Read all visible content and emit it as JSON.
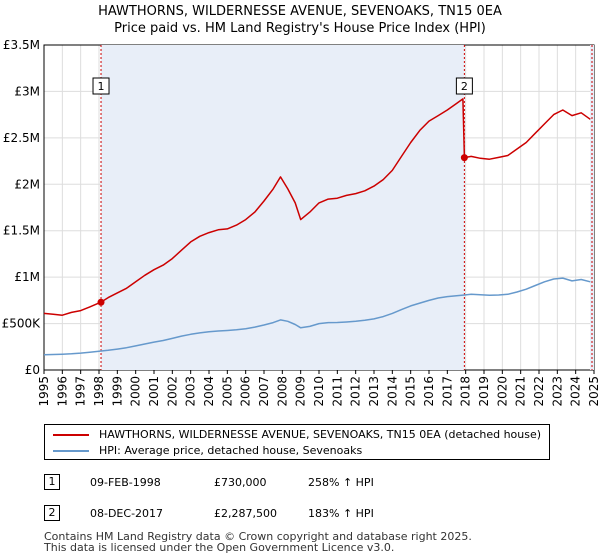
{
  "chart_data": {
    "type": "line",
    "title": "HAWTHORNS, WILDERNESSE AVENUE, SEVENOAKS, TN15 0EA",
    "subtitle": "Price paid vs. HM Land Registry's House Price Index (HPI)",
    "xlim": [
      1995,
      2025
    ],
    "ylim": [
      0,
      3500000
    ],
    "yticks": [
      {
        "value": 0,
        "label": "£0"
      },
      {
        "value": 500000,
        "label": "£500K"
      },
      {
        "value": 1000000,
        "label": "£1M"
      },
      {
        "value": 1500000,
        "label": "£1.5M"
      },
      {
        "value": 2000000,
        "label": "£2M"
      },
      {
        "value": 2500000,
        "label": "£2.5M"
      },
      {
        "value": 3000000,
        "label": "£3M"
      },
      {
        "value": 3500000,
        "label": "£3.5M"
      }
    ],
    "xticks": [
      "1995",
      "1996",
      "1997",
      "1998",
      "1999",
      "2000",
      "2001",
      "2002",
      "2003",
      "2004",
      "2005",
      "2006",
      "2007",
      "2008",
      "2009",
      "2010",
      "2011",
      "2012",
      "2013",
      "2014",
      "2015",
      "2016",
      "2017",
      "2018",
      "2019",
      "2020",
      "2021",
      "2022",
      "2023",
      "2024",
      "2025"
    ],
    "series": [
      {
        "name": "HAWTHORNS, WILDERNESSE AVENUE, SEVENOAKS, TN15 0EA (detached house)",
        "color": "#cc0000",
        "points": [
          [
            1995.0,
            610000
          ],
          [
            1995.5,
            600000
          ],
          [
            1996.0,
            590000
          ],
          [
            1996.5,
            620000
          ],
          [
            1997.0,
            640000
          ],
          [
            1997.5,
            680000
          ],
          [
            1998.1,
            730000
          ],
          [
            1998.5,
            780000
          ],
          [
            1999.0,
            830000
          ],
          [
            1999.5,
            880000
          ],
          [
            2000.0,
            950000
          ],
          [
            2000.5,
            1020000
          ],
          [
            2001.0,
            1080000
          ],
          [
            2001.5,
            1130000
          ],
          [
            2002.0,
            1200000
          ],
          [
            2002.5,
            1290000
          ],
          [
            2003.0,
            1380000
          ],
          [
            2003.5,
            1440000
          ],
          [
            2004.0,
            1480000
          ],
          [
            2004.5,
            1510000
          ],
          [
            2005.0,
            1520000
          ],
          [
            2005.5,
            1560000
          ],
          [
            2006.0,
            1620000
          ],
          [
            2006.5,
            1700000
          ],
          [
            2007.0,
            1820000
          ],
          [
            2007.5,
            1950000
          ],
          [
            2007.9,
            2080000
          ],
          [
            2008.3,
            1950000
          ],
          [
            2008.7,
            1800000
          ],
          [
            2009.0,
            1620000
          ],
          [
            2009.5,
            1700000
          ],
          [
            2010.0,
            1800000
          ],
          [
            2010.5,
            1840000
          ],
          [
            2011.0,
            1850000
          ],
          [
            2011.5,
            1880000
          ],
          [
            2012.0,
            1900000
          ],
          [
            2012.5,
            1930000
          ],
          [
            2013.0,
            1980000
          ],
          [
            2013.5,
            2050000
          ],
          [
            2014.0,
            2150000
          ],
          [
            2014.5,
            2300000
          ],
          [
            2015.0,
            2450000
          ],
          [
            2015.5,
            2580000
          ],
          [
            2016.0,
            2680000
          ],
          [
            2016.5,
            2740000
          ],
          [
            2017.0,
            2800000
          ],
          [
            2017.5,
            2870000
          ],
          [
            2017.85,
            2920000
          ],
          [
            2017.93,
            2287500
          ],
          [
            2018.3,
            2300000
          ],
          [
            2018.8,
            2280000
          ],
          [
            2019.3,
            2270000
          ],
          [
            2019.8,
            2290000
          ],
          [
            2020.3,
            2310000
          ],
          [
            2020.8,
            2380000
          ],
          [
            2021.3,
            2450000
          ],
          [
            2021.8,
            2550000
          ],
          [
            2022.3,
            2650000
          ],
          [
            2022.8,
            2750000
          ],
          [
            2023.3,
            2800000
          ],
          [
            2023.8,
            2740000
          ],
          [
            2024.3,
            2770000
          ],
          [
            2024.8,
            2700000
          ]
        ]
      },
      {
        "name": "HPI: Average price, detached house, Sevenoaks",
        "color": "#6699cc",
        "points": [
          [
            1995.0,
            165000
          ],
          [
            1995.5,
            167000
          ],
          [
            1996.0,
            170000
          ],
          [
            1996.5,
            175000
          ],
          [
            1997.0,
            182000
          ],
          [
            1997.5,
            192000
          ],
          [
            1998.0,
            202000
          ],
          [
            1998.5,
            212000
          ],
          [
            1999.0,
            225000
          ],
          [
            1999.5,
            240000
          ],
          [
            2000.0,
            260000
          ],
          [
            2000.5,
            280000
          ],
          [
            2001.0,
            300000
          ],
          [
            2001.5,
            318000
          ],
          [
            2002.0,
            340000
          ],
          [
            2002.5,
            365000
          ],
          [
            2003.0,
            385000
          ],
          [
            2003.5,
            400000
          ],
          [
            2004.0,
            412000
          ],
          [
            2004.5,
            420000
          ],
          [
            2005.0,
            425000
          ],
          [
            2005.5,
            433000
          ],
          [
            2006.0,
            445000
          ],
          [
            2006.5,
            462000
          ],
          [
            2007.0,
            485000
          ],
          [
            2007.5,
            510000
          ],
          [
            2007.9,
            540000
          ],
          [
            2008.3,
            525000
          ],
          [
            2008.7,
            490000
          ],
          [
            2009.0,
            455000
          ],
          [
            2009.5,
            470000
          ],
          [
            2010.0,
            500000
          ],
          [
            2010.5,
            510000
          ],
          [
            2011.0,
            512000
          ],
          [
            2011.5,
            517000
          ],
          [
            2012.0,
            525000
          ],
          [
            2012.5,
            535000
          ],
          [
            2013.0,
            550000
          ],
          [
            2013.5,
            575000
          ],
          [
            2014.0,
            610000
          ],
          [
            2014.5,
            650000
          ],
          [
            2015.0,
            690000
          ],
          [
            2015.5,
            720000
          ],
          [
            2016.0,
            750000
          ],
          [
            2016.5,
            775000
          ],
          [
            2017.0,
            790000
          ],
          [
            2017.5,
            800000
          ],
          [
            2017.93,
            808000
          ],
          [
            2018.3,
            815000
          ],
          [
            2018.8,
            810000
          ],
          [
            2019.3,
            805000
          ],
          [
            2019.8,
            808000
          ],
          [
            2020.3,
            815000
          ],
          [
            2020.8,
            840000
          ],
          [
            2021.3,
            870000
          ],
          [
            2021.8,
            910000
          ],
          [
            2022.3,
            950000
          ],
          [
            2022.8,
            980000
          ],
          [
            2023.3,
            990000
          ],
          [
            2023.8,
            960000
          ],
          [
            2024.3,
            975000
          ],
          [
            2024.8,
            950000
          ]
        ]
      }
    ],
    "sales": [
      {
        "n": "1",
        "x": 1998.11,
        "value": 730000
      },
      {
        "n": "2",
        "x": 2017.93,
        "value": 2287500
      }
    ]
  },
  "legend": {
    "property": "HAWTHORNS, WILDERNESSE AVENUE, SEVENOAKS, TN15 0EA (detached house)",
    "hpi": "HPI: Average price, detached house, Sevenoaks"
  },
  "sales_table": [
    {
      "n": "1",
      "date": "09-FEB-1998",
      "price": "£730,000",
      "hpi": "258% ↑ HPI"
    },
    {
      "n": "2",
      "date": "08-DEC-2017",
      "price": "£2,287,500",
      "hpi": "183% ↑ HPI"
    }
  ],
  "footer": {
    "line1": "Contains HM Land Registry data © Crown copyright and database right 2025.",
    "line2": "This data is licensed under the Open Government Licence v3.0."
  },
  "colors": {
    "price": "#cc0000",
    "hpi": "#6699cc",
    "shade": "#e8eef8"
  }
}
